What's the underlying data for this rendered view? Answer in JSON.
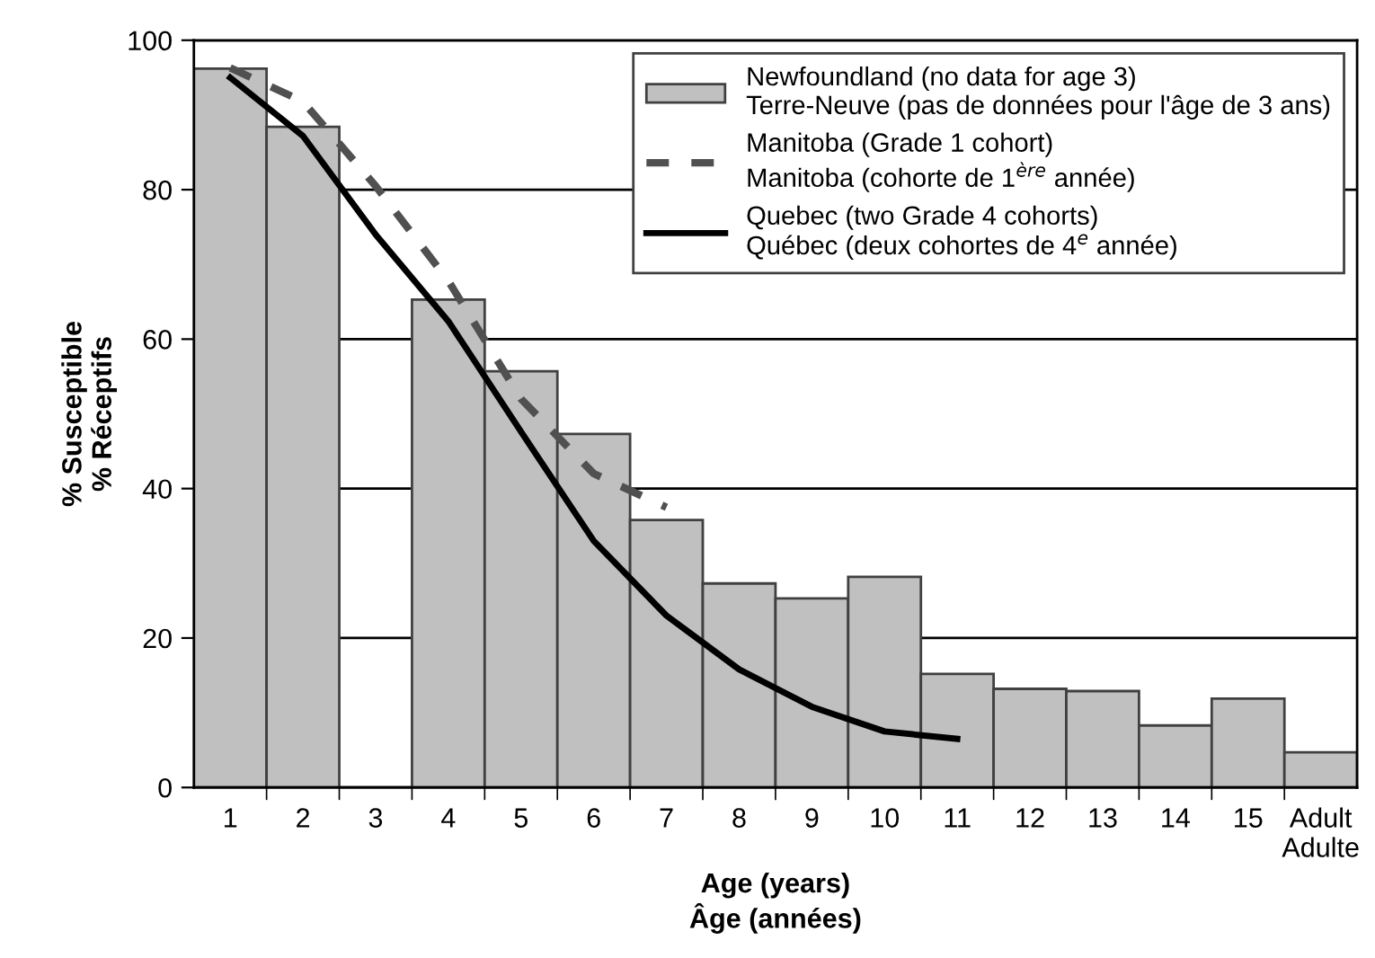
{
  "chart_data": {
    "type": "bar",
    "xlabel": "Age (years)\nÂge (années)",
    "ylabel": "% Susceptible\n% Réceptifs",
    "categories": [
      "1",
      "2",
      "3",
      "4",
      "5",
      "6",
      "7",
      "8",
      "9",
      "10",
      "11",
      "12",
      "13",
      "14",
      "15",
      "Adult\nAdulte"
    ],
    "series": [
      {
        "name": "Newfoundland (no data for age 3)\nTerre-Neuve (pas de données pour l'âge de 3 ans)",
        "color": "#c0c0c0",
        "values": [
          96.2,
          88.4,
          null,
          65.3,
          55.7,
          47.3,
          35.8,
          27.3,
          25.3,
          28.2,
          15.2,
          13.2,
          12.9,
          8.3,
          11.9,
          4.7
        ]
      },
      {
        "name": "Manitoba (Grade 1 cohort)\nManitoba (cohorte de 1$^{ère}$ année)",
        "type": "line",
        "color": "#505050",
        "line_style": "dashed",
        "values": [
          96.3,
          91.8,
          80.5,
          67.8,
          52,
          42,
          37.5,
          null,
          null,
          null,
          null,
          null,
          null,
          null,
          null,
          null
        ]
      },
      {
        "name": "Quebec (two Grade 4 cohorts)\nQuébec (deux cohortes de 4$^{e}$ année)",
        "type": "line",
        "color": "#000000",
        "line_style": "solid",
        "values": [
          95,
          87.2,
          74,
          62.4,
          47.6,
          33,
          23,
          15.8,
          10.8,
          7.5,
          6.5,
          null,
          null,
          null,
          null,
          null
        ]
      }
    ],
    "ylim": [
      0,
      100
    ],
    "yticks": [
      0,
      20,
      40,
      60,
      80,
      100
    ],
    "grid": "y",
    "legend": "top right",
    "marker": "none"
  }
}
